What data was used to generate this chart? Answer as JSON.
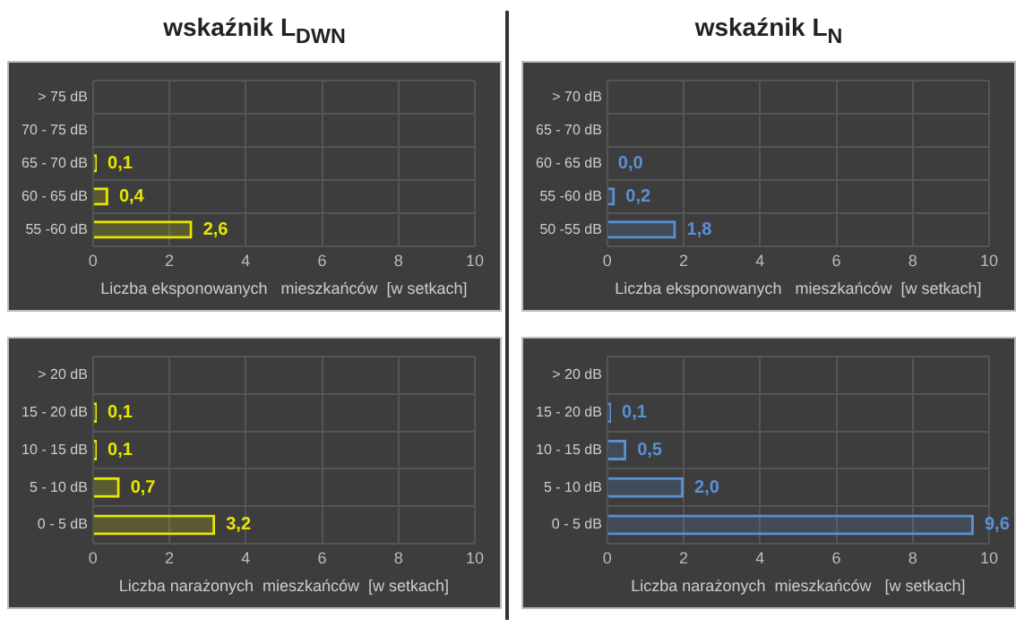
{
  "chart_data": [
    {
      "type": "bar",
      "orientation": "horizontal",
      "title": "wskaźnik L$_{DWN}$",
      "xlabel": "Liczba eksponowanych   mieszkańców  [w setkach]",
      "categories": [
        "> 75 dB",
        "70 - 75 dB",
        "65 - 70 dB",
        "60 - 65 dB",
        "55 -60 dB"
      ],
      "series": [
        {
          "color": "#e6e600",
          "values": [
            null,
            null,
            0.1,
            0.4,
            2.6
          ],
          "value_labels": [
            null,
            null,
            "0,1",
            "0,4",
            "2,6"
          ]
        }
      ],
      "xlim": [
        0,
        10
      ],
      "xticks": [
        0,
        2,
        4,
        6,
        8,
        10
      ],
      "grid": true,
      "legend": false
    },
    {
      "type": "bar",
      "orientation": "horizontal",
      "title": "wskaźnik L$_{N}$",
      "xlabel": "Liczba eksponowanych   mieszkańców  [w setkach]",
      "categories": [
        "> 70 dB",
        "65 - 70 dB",
        "60 - 65 dB",
        "55 -60 dB",
        "50 -55 dB"
      ],
      "series": [
        {
          "color": "#5b8fd6",
          "values": [
            null,
            null,
            0.0,
            0.2,
            1.8
          ],
          "value_labels": [
            null,
            null,
            "0,0",
            "0,2",
            "1,8"
          ]
        }
      ],
      "xlim": [
        0,
        10
      ],
      "xticks": [
        0,
        2,
        4,
        6,
        8,
        10
      ],
      "grid": true,
      "legend": false
    },
    {
      "type": "bar",
      "orientation": "horizontal",
      "xlabel": "Liczba narażonych  mieszkańców  [w setkach]",
      "categories": [
        "> 20 dB",
        "15 - 20 dB",
        "10 - 15 dB",
        "5 - 10 dB",
        "0 - 5 dB"
      ],
      "series": [
        {
          "color": "#e6e600",
          "values": [
            null,
            0.1,
            0.1,
            0.7,
            3.2
          ],
          "value_labels": [
            null,
            "0,1",
            "0,1",
            "0,7",
            "3,2"
          ]
        }
      ],
      "xlim": [
        0,
        10
      ],
      "xticks": [
        0,
        2,
        4,
        6,
        8,
        10
      ],
      "grid": true,
      "legend": false
    },
    {
      "type": "bar",
      "orientation": "horizontal",
      "xlabel": "Liczba narażonych  mieszkańców   [w setkach]",
      "categories": [
        "> 20 dB",
        "15 - 20 dB",
        "10 - 15 dB",
        "5 - 10 dB",
        "0 - 5 dB"
      ],
      "series": [
        {
          "color": "#5b8fd6",
          "values": [
            null,
            0.1,
            0.5,
            2.0,
            9.6
          ],
          "value_labels": [
            null,
            "0,1",
            "0,5",
            "2,0",
            "9,6"
          ]
        }
      ],
      "xlim": [
        0,
        10
      ],
      "xticks": [
        0,
        2,
        4,
        6,
        8,
        10
      ],
      "grid": true,
      "legend": false
    }
  ]
}
